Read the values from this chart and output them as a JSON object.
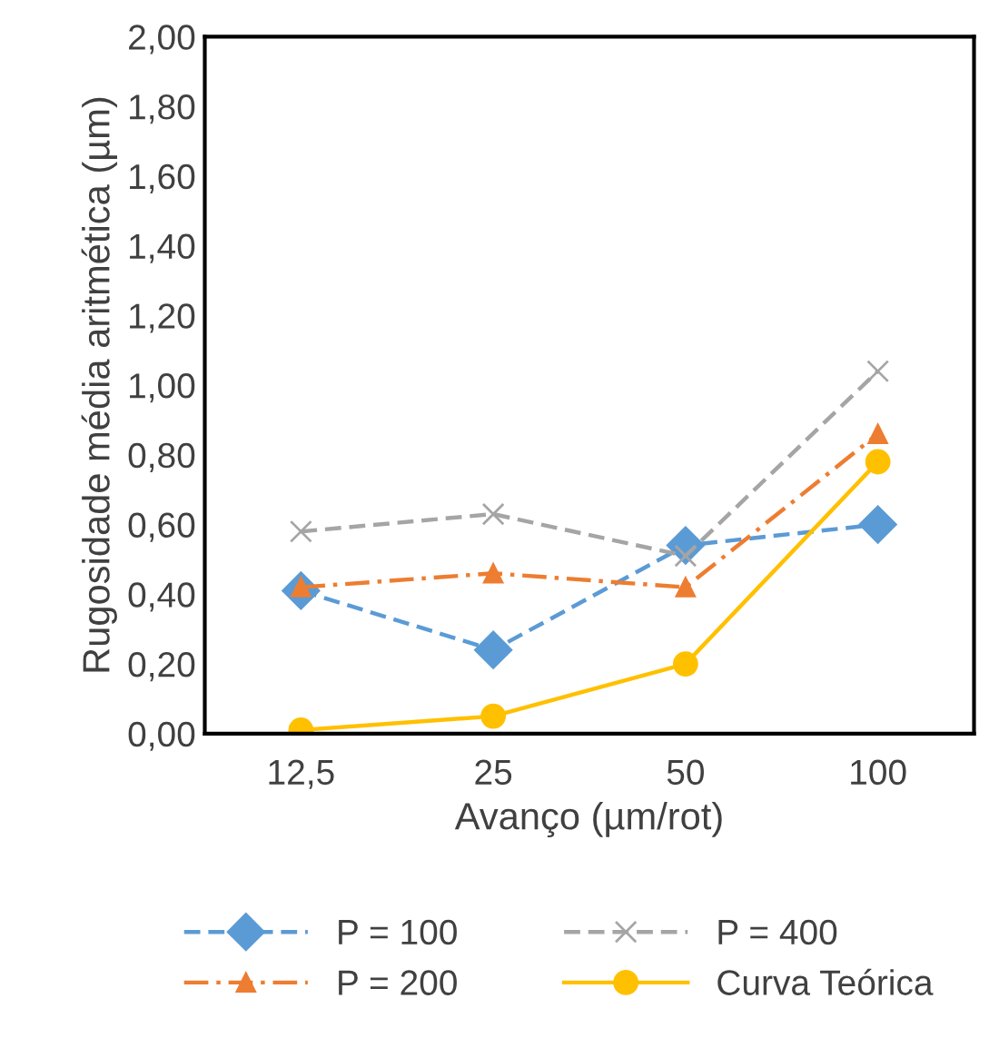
{
  "chart_data": {
    "type": "line",
    "xlabel": "Avanço (µm/rot)",
    "ylabel": "Rugosidade média aritmética (µm)",
    "categories": [
      "12,5",
      "25",
      "50",
      "100"
    ],
    "ylim": [
      0,
      2
    ],
    "yticks": [
      {
        "value": 0,
        "label": "0,00"
      },
      {
        "value": 0.2,
        "label": "0,20"
      },
      {
        "value": 0.4,
        "label": "0,40"
      },
      {
        "value": 0.6,
        "label": "0,60"
      },
      {
        "value": 0.8,
        "label": "0,80"
      },
      {
        "value": 1.0,
        "label": "1,00"
      },
      {
        "value": 1.2,
        "label": "1,20"
      },
      {
        "value": 1.4,
        "label": "1,40"
      },
      {
        "value": 1.6,
        "label": "1,60"
      },
      {
        "value": 1.8,
        "label": "1,80"
      },
      {
        "value": 2.0,
        "label": "2,00"
      }
    ],
    "grid": false,
    "legend": "bottom",
    "series": [
      {
        "name": "P = 100",
        "color": "#5b9bd5",
        "marker": "diamond",
        "line_style": "dashed",
        "values": [
          0.41,
          0.24,
          0.54,
          0.6
        ]
      },
      {
        "name": "P = 200",
        "color": "#ed7d31",
        "marker": "triangle",
        "line_style": "dashdot",
        "values": [
          0.42,
          0.46,
          0.42,
          0.86
        ]
      },
      {
        "name": "P = 400",
        "color": "#a5a5a5",
        "marker": "cross",
        "line_style": "dashed",
        "values": [
          0.58,
          0.63,
          0.51,
          1.04
        ]
      },
      {
        "name": "Curva Teórica",
        "color": "#ffc000",
        "marker": "circle",
        "line_style": "solid",
        "values": [
          0.01,
          0.05,
          0.2,
          0.78
        ]
      }
    ]
  }
}
